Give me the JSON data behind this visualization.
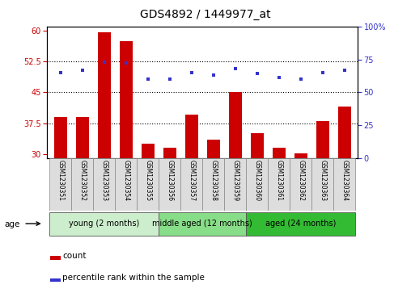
{
  "title": "GDS4892 / 1449977_at",
  "samples": [
    "GSM1230351",
    "GSM1230352",
    "GSM1230353",
    "GSM1230354",
    "GSM1230355",
    "GSM1230356",
    "GSM1230357",
    "GSM1230358",
    "GSM1230359",
    "GSM1230360",
    "GSM1230361",
    "GSM1230362",
    "GSM1230363",
    "GSM1230364"
  ],
  "counts": [
    39.0,
    39.0,
    59.5,
    57.5,
    32.5,
    31.5,
    39.5,
    33.5,
    45.0,
    35.0,
    31.5,
    30.2,
    38.0,
    41.5
  ],
  "percentiles": [
    65,
    67,
    73,
    72,
    60,
    60,
    65,
    63,
    68,
    64,
    61,
    60,
    65,
    67
  ],
  "ylim_left": [
    29,
    61
  ],
  "ylim_right": [
    0,
    100
  ],
  "yticks_left": [
    30,
    37.5,
    45,
    52.5,
    60
  ],
  "yticks_right": [
    0,
    25,
    50,
    75,
    100
  ],
  "ytick_labels_left": [
    "30",
    "37.5",
    "45",
    "52.5",
    "60"
  ],
  "ytick_labels_right": [
    "0",
    "25",
    "50",
    "75",
    "100%"
  ],
  "bar_color": "#cc0000",
  "dot_color": "#3333cc",
  "bar_bottom": 29,
  "groups": [
    {
      "label": "young (2 months)",
      "start": 0,
      "end": 4,
      "color": "#cceecc"
    },
    {
      "label": "middle aged (12 months)",
      "start": 5,
      "end": 8,
      "color": "#88dd88"
    },
    {
      "label": "aged (24 months)",
      "start": 9,
      "end": 13,
      "color": "#33bb33"
    }
  ],
  "age_label": "age",
  "legend_count_label": "count",
  "legend_percentile_label": "percentile rank within the sample",
  "grid_yticks": [
    37.5,
    45.0,
    52.5
  ],
  "title_fontsize": 10,
  "tick_label_fontsize": 7,
  "sample_label_fontsize": 5.5,
  "group_label_fontsize": 7,
  "legend_fontsize": 7.5
}
